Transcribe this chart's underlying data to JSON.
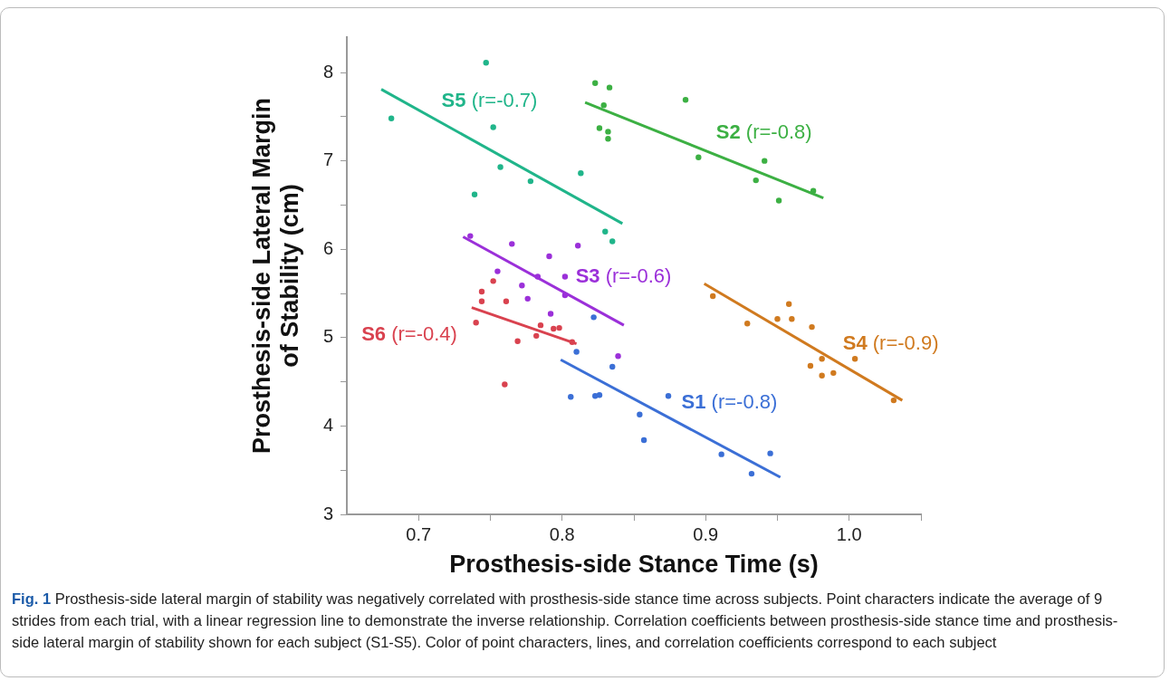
{
  "chart_data": {
    "type": "scatter",
    "xlabel": "Prosthesis-side Stance Time (s)",
    "ylabel": "Prosthesis-side Lateral Margin of Stability (cm)",
    "xlim": [
      0.65,
      1.05
    ],
    "ylim": [
      3,
      8.4
    ],
    "xticks": [
      0.7,
      {
        "value": 0.75,
        "label": null
      },
      0.8,
      {
        "value": 0.85,
        "label": null
      },
      0.9,
      {
        "value": 0.95,
        "label": null
      },
      {
        "value": 1.0,
        "label": "1.0"
      },
      {
        "value": 1.05,
        "label": null
      }
    ],
    "yticks": [
      3,
      {
        "value": 3.5,
        "label": null
      },
      4,
      {
        "value": 4.5,
        "label": null
      },
      5,
      {
        "value": 5.5,
        "label": null
      },
      6,
      {
        "value": 6.5,
        "label": null
      },
      7,
      {
        "value": 7.5,
        "label": null
      },
      8
    ],
    "grid": false,
    "legend": false,
    "marker": "circle",
    "line_style": "solid",
    "series": [
      {
        "color": "#3b6fd6",
        "x": [
          0.822,
          0.81,
          0.835,
          0.806,
          0.823,
          0.826,
          0.854,
          0.874,
          0.857,
          0.911,
          0.945,
          0.932
        ],
        "values": [
          5.23,
          4.84,
          4.67,
          4.33,
          4.34,
          4.35,
          4.13,
          4.34,
          3.84,
          3.68,
          3.69,
          3.46
        ]
      },
      {
        "type": "line",
        "name": "S1 (r=-0.8)",
        "marker": "none",
        "color": "#3b6fd6",
        "x": [
          0.799,
          0.952
        ],
        "values": [
          4.75,
          3.42
        ]
      },
      {
        "color": "#3cb043",
        "x": [
          0.823,
          0.833,
          0.829,
          0.826,
          0.832,
          0.832,
          0.886,
          0.895,
          0.941,
          0.935,
          0.951,
          0.975
        ],
        "values": [
          7.88,
          7.83,
          7.63,
          7.37,
          7.33,
          7.25,
          7.69,
          7.04,
          7.0,
          6.78,
          6.55,
          6.66
        ]
      },
      {
        "type": "line",
        "name": "S2 (r=-0.8)",
        "marker": "none",
        "color": "#3cb043",
        "x": [
          0.816,
          0.982
        ],
        "values": [
          7.66,
          6.58
        ]
      },
      {
        "color": "#9b30d9",
        "x": [
          0.736,
          0.765,
          0.811,
          0.791,
          0.755,
          0.783,
          0.802,
          0.772,
          0.776,
          0.802,
          0.792,
          0.839
        ],
        "values": [
          6.15,
          6.06,
          6.04,
          5.92,
          5.75,
          5.69,
          5.69,
          5.59,
          5.44,
          5.48,
          5.27,
          4.79
        ]
      },
      {
        "type": "line",
        "name": "S3 (r=-0.6)",
        "marker": "none",
        "color": "#9b30d9",
        "x": [
          0.731,
          0.843
        ],
        "values": [
          6.14,
          5.14
        ]
      },
      {
        "color": "#d07a1f",
        "x": [
          0.905,
          0.929,
          0.95,
          0.96,
          0.958,
          0.974,
          0.981,
          1.004,
          0.973,
          0.981,
          0.989,
          1.031
        ],
        "values": [
          5.47,
          5.16,
          5.21,
          5.21,
          5.38,
          5.12,
          4.76,
          4.76,
          4.68,
          4.57,
          4.6,
          4.29
        ]
      },
      {
        "type": "line",
        "name": "S4 (r=-0.9)",
        "marker": "none",
        "color": "#d07a1f",
        "x": [
          0.899,
          1.037
        ],
        "values": [
          5.61,
          4.29
        ]
      },
      {
        "color": "#20b58a",
        "x": [
          0.747,
          0.681,
          0.752,
          0.757,
          0.778,
          0.813,
          0.739,
          0.83,
          0.835
        ],
        "values": [
          8.11,
          7.48,
          7.38,
          6.93,
          6.77,
          6.86,
          6.62,
          6.2,
          6.09
        ]
      },
      {
        "type": "line",
        "name": "S5 (r=-0.7)",
        "marker": "none",
        "color": "#20b58a",
        "x": [
          0.674,
          0.842
        ],
        "values": [
          7.81,
          6.29
        ]
      },
      {
        "color": "#d9424f",
        "x": [
          0.752,
          0.744,
          0.744,
          0.761,
          0.74,
          0.785,
          0.794,
          0.798,
          0.782,
          0.769,
          0.807,
          0.76
        ],
        "values": [
          5.64,
          5.52,
          5.41,
          5.41,
          5.17,
          5.14,
          5.1,
          5.11,
          5.02,
          4.96,
          4.95,
          4.47
        ]
      },
      {
        "type": "line",
        "name": "S6 (r=-0.4)",
        "marker": "none",
        "color": "#d9424f",
        "x": [
          0.737,
          0.81
        ],
        "values": [
          5.34,
          4.93
        ]
      }
    ],
    "annotations": [
      "Fig. 1 Prosthesis-side lateral margin of stability was negatively correlated with prosthesis-side stance time across subjects. Point characters indicate the average of 9 strides from each trial, with a linear regression line to demonstrate the inverse relationship. Correlation coefficients between prosthesis-side stance time and prosthesis-side lateral margin of stability shown for each subject (S1-S5). Color of point characters, lines, and correlation coefficients correspond to each subject"
    ]
  }
}
